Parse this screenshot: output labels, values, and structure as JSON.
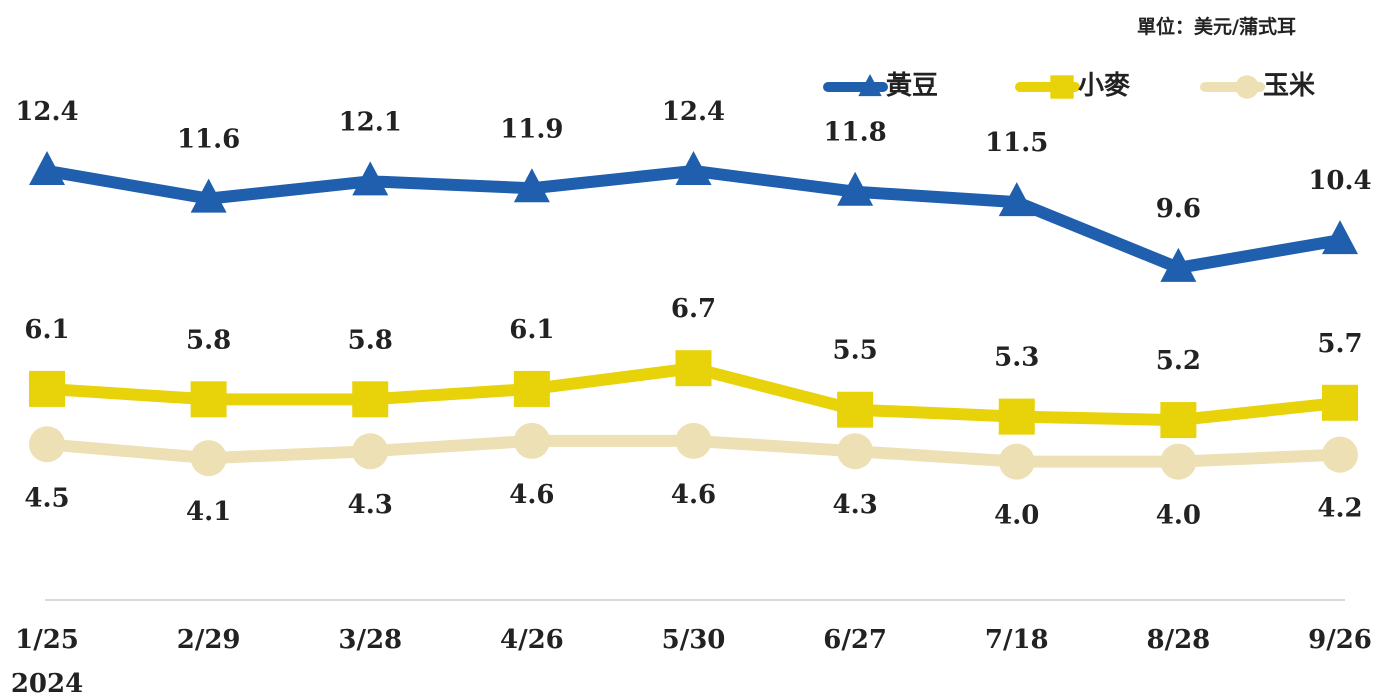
{
  "chart_data": {
    "type": "line",
    "unit_note": "單位：美元/蒲式耳",
    "categories": [
      "1/25",
      "2/29",
      "3/28",
      "4/26",
      "5/30",
      "6/27",
      "7/18",
      "8/28",
      "9/26"
    ],
    "year_label": "2024",
    "ylim": [
      0,
      15
    ],
    "legend": "top-right",
    "series": [
      {
        "name": "黃豆",
        "color": "#1f5fad",
        "marker": "triangle",
        "label_position": "above",
        "values": [
          12.4,
          11.6,
          12.1,
          11.9,
          12.4,
          11.8,
          11.5,
          9.6,
          10.4
        ]
      },
      {
        "name": "小麥",
        "color": "#e8d20a",
        "marker": "square",
        "label_position": "above",
        "values": [
          6.1,
          5.8,
          5.8,
          6.1,
          6.7,
          5.5,
          5.3,
          5.2,
          5.7
        ]
      },
      {
        "name": "玉米",
        "color": "#ede0b4",
        "marker": "circle",
        "label_position": "below",
        "values": [
          4.5,
          4.1,
          4.3,
          4.6,
          4.6,
          4.3,
          4,
          4,
          4.2
        ],
        "value_labels": [
          "4.5",
          "4.1",
          "4.3",
          "4.6",
          "4.6",
          "4.3",
          "4.0",
          "4.0",
          "4.2"
        ]
      }
    ]
  }
}
